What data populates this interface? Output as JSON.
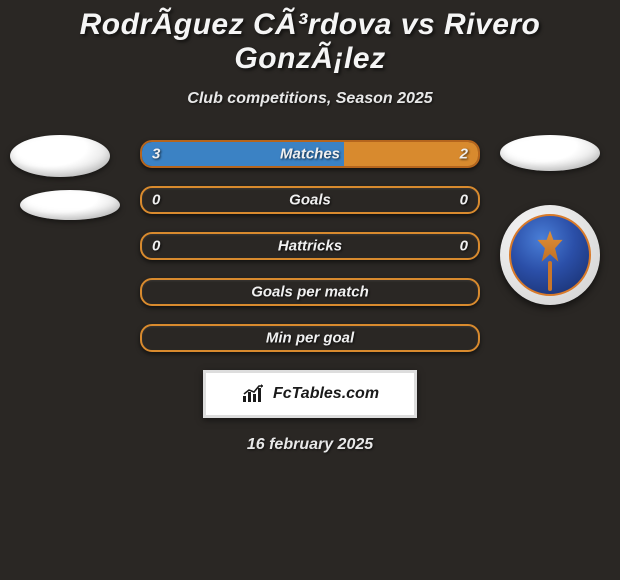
{
  "title": "RodrÃ­guez CÃ³rdova vs Rivero GonzÃ¡lez",
  "subtitle": "Club competitions, Season 2025",
  "date": "16 february 2025",
  "footer_brand": "FcTables.com",
  "colors": {
    "background": "#2a2724",
    "left_accent": "#3b82c4",
    "right_accent": "#d88a2e",
    "bar_border": "#d88a2e",
    "bar_bg": "#2a2724",
    "text": "#f0f0f0"
  },
  "bars": [
    {
      "label": "Matches",
      "left_value": "3",
      "right_value": "2",
      "left_pct": 60,
      "right_pct": 40,
      "left_fill": "#3b82c4",
      "right_fill": "#d88a2e",
      "border": "#b5651d"
    },
    {
      "label": "Goals",
      "left_value": "0",
      "right_value": "0",
      "left_pct": 0,
      "right_pct": 0,
      "left_fill": "#3b82c4",
      "right_fill": "#d88a2e",
      "border": "#d88a2e"
    },
    {
      "label": "Hattricks",
      "left_value": "0",
      "right_value": "0",
      "left_pct": 0,
      "right_pct": 0,
      "left_fill": "#3b82c4",
      "right_fill": "#d88a2e",
      "border": "#d88a2e"
    },
    {
      "label": "Goals per match",
      "left_value": "",
      "right_value": "",
      "left_pct": 0,
      "right_pct": 0,
      "left_fill": "#3b82c4",
      "right_fill": "#d88a2e",
      "border": "#d88a2e"
    },
    {
      "label": "Min per goal",
      "left_value": "",
      "right_value": "",
      "left_pct": 0,
      "right_pct": 0,
      "left_fill": "#3b82c4",
      "right_fill": "#d88a2e",
      "border": "#d88a2e"
    }
  ]
}
